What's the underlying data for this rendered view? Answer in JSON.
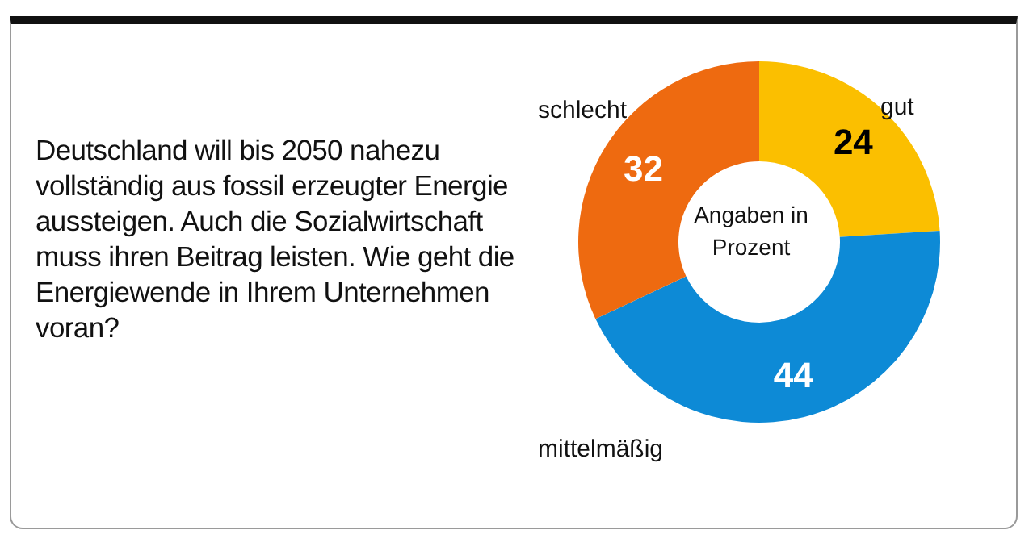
{
  "chart_data": {
    "type": "donut",
    "title": "Deutschland will bis 2050 nahezu vollständig aus fossil erzeugter Energie aussteigen. Auch die Sozialwirtschaft muss ihren Beitrag leisten. Wie geht die Energiewende in Ihrem Unternehmen voran?",
    "categories": [
      "gut",
      "mittelmäßig",
      "schlecht"
    ],
    "values": [
      24,
      44,
      32
    ],
    "colors": [
      "#fbbf00",
      "#0d8ad6",
      "#ee6a10"
    ],
    "data_labels": true,
    "legend": false,
    "annotations": [
      "Angaben in Prozent"
    ]
  }
}
